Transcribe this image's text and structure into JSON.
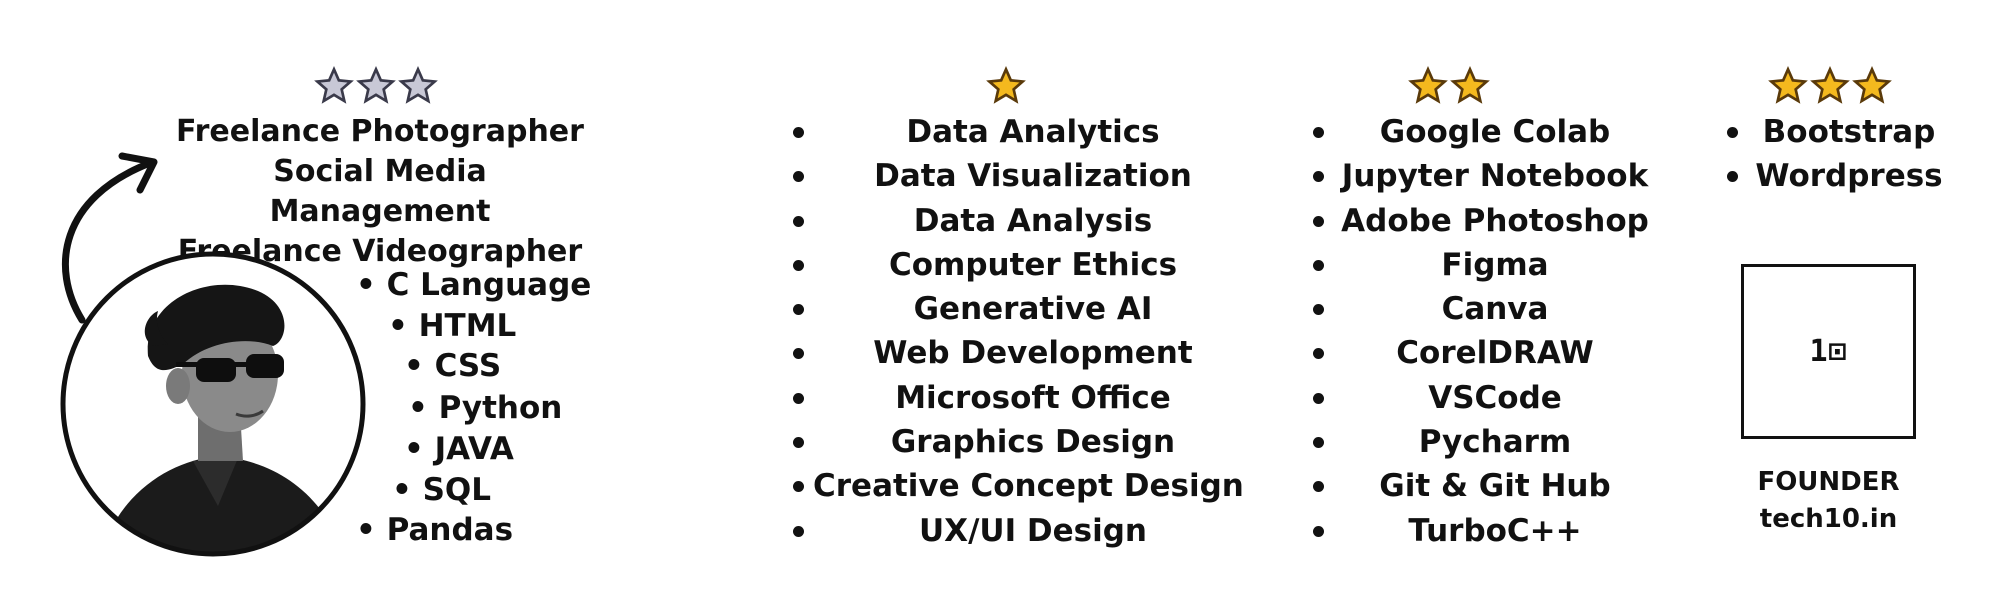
{
  "colors": {
    "text": "#111111",
    "star_gold": "#f4b91e",
    "star_gray": "#8a8a9a",
    "background": "#ffffff"
  },
  "col1": {
    "stars": {
      "filled": 3,
      "style": "gray"
    },
    "roles": [
      "Freelance Photographer",
      "Social Media Management",
      "Freelance Videographer"
    ],
    "skills": [
      "C Language",
      "HTML",
      "CSS",
      "Python",
      "JAVA",
      "SQL",
      "Pandas"
    ]
  },
  "col2": {
    "stars": {
      "filled": 1,
      "style": "gold"
    },
    "items": [
      "Data Analytics",
      "Data Visualization",
      "Data Analysis",
      "Computer Ethics",
      "Generative AI",
      "Web Development",
      "Microsoft Office",
      "Graphics Design",
      "Creative Concept Design",
      "UX/UI Design"
    ]
  },
  "col3": {
    "stars": {
      "filled": 2,
      "style": "gold"
    },
    "items": [
      "Google Colab",
      "Jupyter Notebook",
      "Adobe Photoshop",
      "Figma",
      "Canva",
      "CorelDRAW",
      "VSCode",
      "Pycharm",
      "Git & Git Hub",
      "TurboC++"
    ]
  },
  "col4": {
    "stars": {
      "filled": 3,
      "style": "gold"
    },
    "items": [
      "Bootstrap",
      "Wordpress"
    ],
    "logo_text": "1⊡",
    "founder_label": "FOUNDER",
    "founder_site": "tech10.in"
  },
  "icons": {
    "arrow": "curved-arrow-icon",
    "portrait": "avatar",
    "star": "star-icon"
  }
}
